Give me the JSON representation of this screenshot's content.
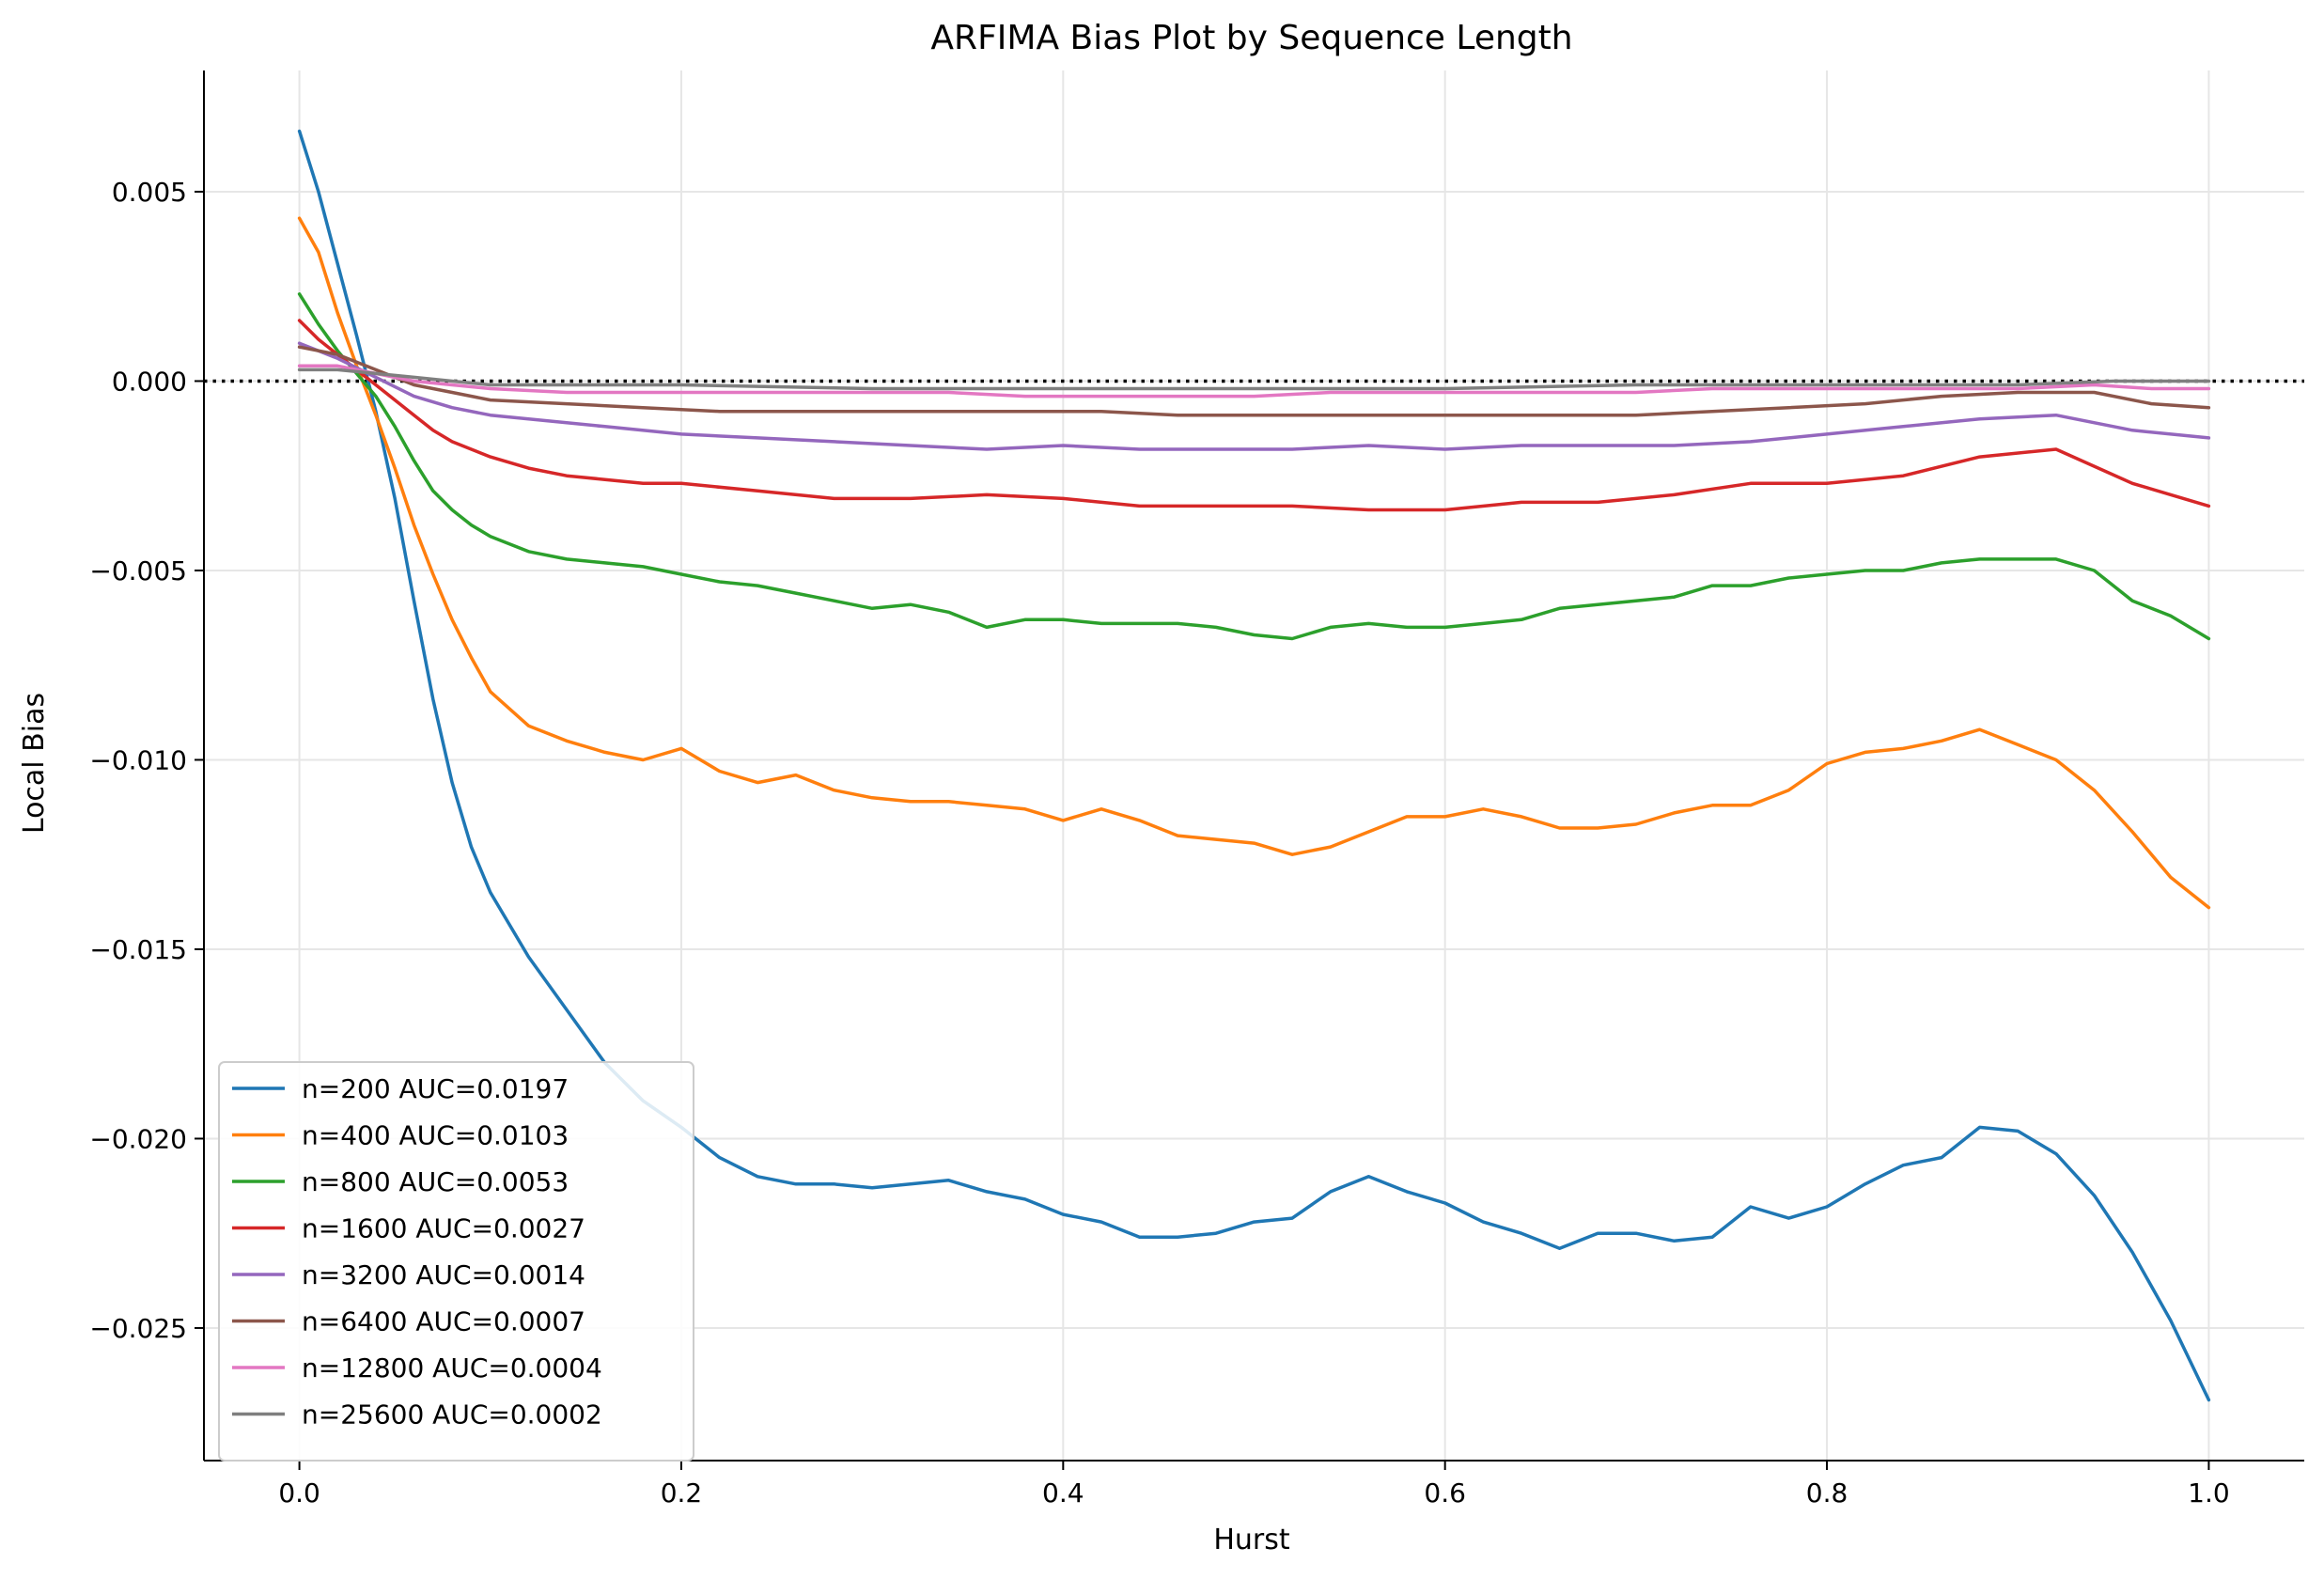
{
  "chart_data": {
    "type": "line",
    "title": "ARFIMA Bias Plot by Sequence Length",
    "xlabel": "Hurst",
    "ylabel": "Local Bias",
    "xlim": [
      -0.05,
      1.05
    ],
    "ylim": [
      -0.0285,
      0.0082
    ],
    "xticks": [
      0.0,
      0.2,
      0.4,
      0.6,
      0.8,
      1.0
    ],
    "xtick_labels": [
      "0.0",
      "0.2",
      "0.4",
      "0.6",
      "0.8",
      "1.0"
    ],
    "yticks": [
      0.005,
      0.0,
      -0.005,
      -0.01,
      -0.015,
      -0.02,
      -0.025
    ],
    "ytick_labels": [
      "0.005",
      "0.000",
      "−0.005",
      "−0.010",
      "−0.015",
      "−0.020",
      "−0.025"
    ],
    "grid": true,
    "legend_position": "lower-left",
    "reference_line": {
      "y": 0.0,
      "style": "dotted",
      "color": "#000000"
    },
    "series": [
      {
        "name": "n=200 AUC=0.0197",
        "color": "#1f77b4",
        "x": [
          0.0,
          0.01,
          0.02,
          0.03,
          0.04,
          0.05,
          0.06,
          0.07,
          0.08,
          0.09,
          0.1,
          0.12,
          0.14,
          0.16,
          0.18,
          0.2,
          0.22,
          0.24,
          0.26,
          0.28,
          0.3,
          0.32,
          0.34,
          0.36,
          0.38,
          0.4,
          0.42,
          0.44,
          0.46,
          0.48,
          0.5,
          0.52,
          0.54,
          0.56,
          0.58,
          0.6,
          0.62,
          0.64,
          0.66,
          0.68,
          0.7,
          0.72,
          0.74,
          0.76,
          0.78,
          0.8,
          0.82,
          0.84,
          0.86,
          0.88,
          0.9,
          0.92,
          0.94,
          0.96,
          0.98,
          1.0
        ],
        "y": [
          0.0066,
          0.005,
          0.0031,
          0.0012,
          -0.0008,
          -0.0031,
          -0.0058,
          -0.0084,
          -0.0106,
          -0.0123,
          -0.0135,
          -0.0152,
          -0.0166,
          -0.018,
          -0.019,
          -0.0197,
          -0.0205,
          -0.021,
          -0.0212,
          -0.0212,
          -0.0213,
          -0.0212,
          -0.0211,
          -0.0214,
          -0.0216,
          -0.022,
          -0.0222,
          -0.0226,
          -0.0226,
          -0.0225,
          -0.0222,
          -0.0221,
          -0.0214,
          -0.021,
          -0.0214,
          -0.0217,
          -0.0222,
          -0.0225,
          -0.0229,
          -0.0225,
          -0.0225,
          -0.0227,
          -0.0226,
          -0.0218,
          -0.0221,
          -0.0218,
          -0.0212,
          -0.0207,
          -0.0205,
          -0.0197,
          -0.0198,
          -0.0204,
          -0.0215,
          -0.023,
          -0.0248,
          -0.0269
        ]
      },
      {
        "name": "n=400 AUC=0.0103",
        "color": "#ff7f0e",
        "x": [
          0.0,
          0.01,
          0.02,
          0.03,
          0.04,
          0.05,
          0.06,
          0.07,
          0.08,
          0.09,
          0.1,
          0.12,
          0.14,
          0.16,
          0.18,
          0.2,
          0.22,
          0.24,
          0.26,
          0.28,
          0.3,
          0.32,
          0.34,
          0.36,
          0.38,
          0.4,
          0.42,
          0.44,
          0.46,
          0.48,
          0.5,
          0.52,
          0.54,
          0.56,
          0.58,
          0.6,
          0.62,
          0.64,
          0.66,
          0.68,
          0.7,
          0.72,
          0.74,
          0.76,
          0.78,
          0.8,
          0.82,
          0.84,
          0.86,
          0.88,
          0.9,
          0.92,
          0.94,
          0.96,
          0.98,
          1.0
        ],
        "y": [
          0.0043,
          0.0034,
          0.0018,
          0.0004,
          -0.0009,
          -0.0023,
          -0.0038,
          -0.0051,
          -0.0063,
          -0.0073,
          -0.0082,
          -0.0091,
          -0.0095,
          -0.0098,
          -0.01,
          -0.0097,
          -0.0103,
          -0.0106,
          -0.0104,
          -0.0108,
          -0.011,
          -0.0111,
          -0.0111,
          -0.0112,
          -0.0113,
          -0.0116,
          -0.0113,
          -0.0116,
          -0.012,
          -0.0121,
          -0.0122,
          -0.0125,
          -0.0123,
          -0.0119,
          -0.0115,
          -0.0115,
          -0.0113,
          -0.0115,
          -0.0118,
          -0.0118,
          -0.0117,
          -0.0114,
          -0.0112,
          -0.0112,
          -0.0108,
          -0.0101,
          -0.0098,
          -0.0097,
          -0.0095,
          -0.0092,
          -0.0096,
          -0.01,
          -0.0108,
          -0.0119,
          -0.0131,
          -0.0139
        ]
      },
      {
        "name": "n=800 AUC=0.0053",
        "color": "#2ca02c",
        "x": [
          0.0,
          0.01,
          0.02,
          0.03,
          0.04,
          0.05,
          0.06,
          0.07,
          0.08,
          0.09,
          0.1,
          0.12,
          0.14,
          0.16,
          0.18,
          0.2,
          0.22,
          0.24,
          0.26,
          0.28,
          0.3,
          0.32,
          0.34,
          0.36,
          0.38,
          0.4,
          0.42,
          0.44,
          0.46,
          0.48,
          0.5,
          0.52,
          0.54,
          0.56,
          0.58,
          0.6,
          0.62,
          0.64,
          0.66,
          0.68,
          0.7,
          0.72,
          0.74,
          0.76,
          0.78,
          0.8,
          0.82,
          0.84,
          0.86,
          0.88,
          0.9,
          0.92,
          0.94,
          0.96,
          0.98,
          1.0
        ],
        "y": [
          0.0023,
          0.0015,
          0.0008,
          0.0002,
          -0.0004,
          -0.0012,
          -0.0021,
          -0.0029,
          -0.0034,
          -0.0038,
          -0.0041,
          -0.0045,
          -0.0047,
          -0.0048,
          -0.0049,
          -0.0051,
          -0.0053,
          -0.0054,
          -0.0056,
          -0.0058,
          -0.006,
          -0.0059,
          -0.0061,
          -0.0065,
          -0.0063,
          -0.0063,
          -0.0064,
          -0.0064,
          -0.0064,
          -0.0065,
          -0.0067,
          -0.0068,
          -0.0065,
          -0.0064,
          -0.0065,
          -0.0065,
          -0.0064,
          -0.0063,
          -0.006,
          -0.0059,
          -0.0058,
          -0.0057,
          -0.0054,
          -0.0054,
          -0.0052,
          -0.0051,
          -0.005,
          -0.005,
          -0.0048,
          -0.0047,
          -0.0047,
          -0.0047,
          -0.005,
          -0.0058,
          -0.0062,
          -0.0068
        ]
      },
      {
        "name": "n=1600 AUC=0.0027",
        "color": "#d62728",
        "x": [
          0.0,
          0.01,
          0.02,
          0.03,
          0.04,
          0.05,
          0.06,
          0.07,
          0.08,
          0.1,
          0.12,
          0.14,
          0.16,
          0.18,
          0.2,
          0.24,
          0.28,
          0.32,
          0.36,
          0.4,
          0.44,
          0.48,
          0.52,
          0.56,
          0.6,
          0.64,
          0.68,
          0.72,
          0.76,
          0.8,
          0.84,
          0.88,
          0.92,
          0.96,
          1.0
        ],
        "y": [
          0.0016,
          0.0011,
          0.0007,
          0.0003,
          -0.0001,
          -0.0005,
          -0.0009,
          -0.0013,
          -0.0016,
          -0.002,
          -0.0023,
          -0.0025,
          -0.0026,
          -0.0027,
          -0.0027,
          -0.0029,
          -0.0031,
          -0.0031,
          -0.003,
          -0.0031,
          -0.0033,
          -0.0033,
          -0.0033,
          -0.0034,
          -0.0034,
          -0.0032,
          -0.0032,
          -0.003,
          -0.0027,
          -0.0027,
          -0.0025,
          -0.002,
          -0.0018,
          -0.0027,
          -0.0033
        ]
      },
      {
        "name": "n=3200 AUC=0.0014",
        "color": "#9467bd",
        "x": [
          0.0,
          0.02,
          0.04,
          0.06,
          0.08,
          0.1,
          0.12,
          0.16,
          0.2,
          0.24,
          0.28,
          0.32,
          0.36,
          0.4,
          0.44,
          0.48,
          0.52,
          0.56,
          0.6,
          0.64,
          0.68,
          0.72,
          0.76,
          0.8,
          0.84,
          0.88,
          0.92,
          0.96,
          1.0
        ],
        "y": [
          0.001,
          0.0006,
          0.0001,
          -0.0004,
          -0.0007,
          -0.0009,
          -0.001,
          -0.0012,
          -0.0014,
          -0.0015,
          -0.0016,
          -0.0017,
          -0.0018,
          -0.0017,
          -0.0018,
          -0.0018,
          -0.0018,
          -0.0017,
          -0.0018,
          -0.0017,
          -0.0017,
          -0.0017,
          -0.0016,
          -0.0014,
          -0.0012,
          -0.001,
          -0.0009,
          -0.0013,
          -0.0015
        ]
      },
      {
        "name": "n=6400 AUC=0.0007",
        "color": "#8c564b",
        "x": [
          0.0,
          0.02,
          0.04,
          0.06,
          0.08,
          0.1,
          0.14,
          0.18,
          0.22,
          0.26,
          0.3,
          0.34,
          0.38,
          0.42,
          0.46,
          0.5,
          0.54,
          0.58,
          0.62,
          0.66,
          0.7,
          0.74,
          0.78,
          0.82,
          0.86,
          0.9,
          0.94,
          0.97,
          1.0
        ],
        "y": [
          0.0009,
          0.0007,
          0.0003,
          -0.0001,
          -0.0003,
          -0.0005,
          -0.0006,
          -0.0007,
          -0.0008,
          -0.0008,
          -0.0008,
          -0.0008,
          -0.0008,
          -0.0008,
          -0.0009,
          -0.0009,
          -0.0009,
          -0.0009,
          -0.0009,
          -0.0009,
          -0.0009,
          -0.0008,
          -0.0007,
          -0.0006,
          -0.0004,
          -0.0003,
          -0.0003,
          -0.0006,
          -0.0007
        ]
      },
      {
        "name": "n=12800 AUC=0.0004",
        "color": "#e377c2",
        "x": [
          0.0,
          0.02,
          0.04,
          0.06,
          0.08,
          0.1,
          0.14,
          0.18,
          0.22,
          0.26,
          0.3,
          0.34,
          0.38,
          0.42,
          0.46,
          0.5,
          0.54,
          0.58,
          0.62,
          0.66,
          0.7,
          0.74,
          0.78,
          0.82,
          0.86,
          0.9,
          0.94,
          0.97,
          1.0
        ],
        "y": [
          0.0004,
          0.0004,
          0.0002,
          0.0,
          -0.0001,
          -0.0002,
          -0.0003,
          -0.0003,
          -0.0003,
          -0.0003,
          -0.0003,
          -0.0003,
          -0.0004,
          -0.0004,
          -0.0004,
          -0.0004,
          -0.0003,
          -0.0003,
          -0.0003,
          -0.0003,
          -0.0003,
          -0.0002,
          -0.0002,
          -0.0002,
          -0.0002,
          -0.0002,
          -0.0001,
          -0.0002,
          -0.0002
        ]
      },
      {
        "name": "n=25600 AUC=0.0002",
        "color": "#7f7f7f",
        "x": [
          0.0,
          0.02,
          0.04,
          0.06,
          0.08,
          0.1,
          0.14,
          0.2,
          0.3,
          0.4,
          0.5,
          0.6,
          0.7,
          0.8,
          0.9,
          0.95,
          1.0
        ],
        "y": [
          0.0003,
          0.0003,
          0.0002,
          0.0001,
          0.0,
          -0.0001,
          -0.0001,
          -0.0001,
          -0.0002,
          -0.0002,
          -0.0002,
          -0.0002,
          -0.0001,
          -0.0001,
          -0.0001,
          0.0,
          0.0
        ]
      }
    ]
  }
}
